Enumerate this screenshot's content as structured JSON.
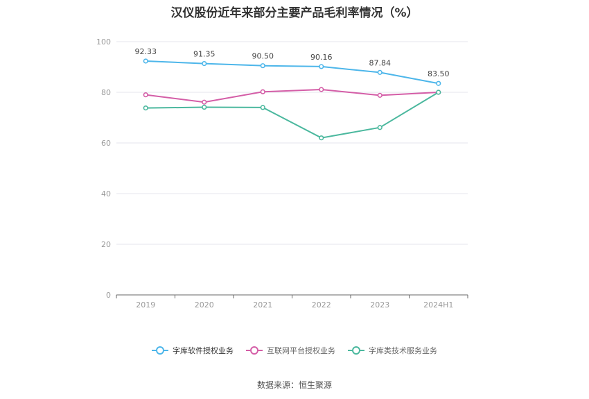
{
  "title": "汉仪股份近年来部分主要产品毛利率情况（%）",
  "source": "数据来源：恒生聚源",
  "chart_data": {
    "type": "line",
    "categories": [
      "2019",
      "2020",
      "2021",
      "2022",
      "2023",
      "2024H1"
    ],
    "ylim": [
      0,
      100
    ],
    "yticks": [
      0,
      20,
      40,
      60,
      80,
      100
    ],
    "grid": true,
    "legend_position": "bottom",
    "series": [
      {
        "name": "字库软件授权业务",
        "color": "#4db6ea",
        "values": [
          92.33,
          91.35,
          90.5,
          90.16,
          87.84,
          83.5
        ],
        "labels": [
          "92.33",
          "91.35",
          "90.50",
          "90.16",
          "87.84",
          "83.50"
        ]
      },
      {
        "name": "互联网平台授权业务",
        "color": "#d45ea7",
        "values": [
          79.0,
          76.1,
          80.2,
          81.1,
          78.8,
          80.0
        ]
      },
      {
        "name": "字库类技术服务业务",
        "color": "#4bb89e",
        "values": [
          73.8,
          74.1,
          74.0,
          62.0,
          66.1,
          80.0
        ]
      }
    ]
  }
}
